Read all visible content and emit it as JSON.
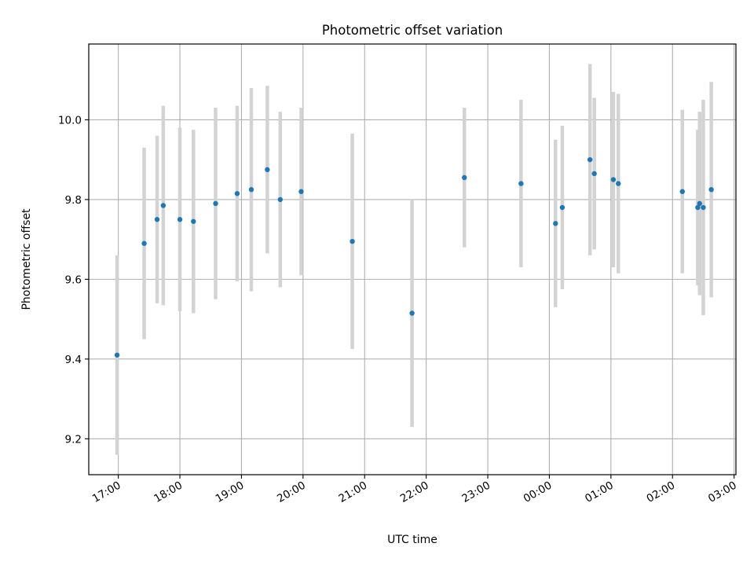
{
  "chart_data": {
    "type": "scatter",
    "title": "Photometric offset variation",
    "xlabel": "UTC time",
    "ylabel": "Photometric offset",
    "x_unit": "hours after 17:00 UTC",
    "xlim": [
      -0.48,
      10.03
    ],
    "ylim": [
      9.11,
      10.19
    ],
    "x_ticks": [
      0,
      1,
      2,
      3,
      4,
      5,
      6,
      7,
      8,
      9,
      10
    ],
    "x_tick_labels": [
      "17:00",
      "18:00",
      "19:00",
      "20:00",
      "21:00",
      "22:00",
      "23:00",
      "00:00",
      "01:00",
      "02:00",
      "03:00"
    ],
    "y_ticks": [
      9.2,
      9.4,
      9.6,
      9.8,
      10.0
    ],
    "y_tick_labels": [
      "9.2",
      "9.4",
      "9.6",
      "9.8",
      "10.0"
    ],
    "grid": true,
    "colors": {
      "points": "#1f77b4",
      "errorbars": "#d3d3d3",
      "grid": "#b0b0b0"
    },
    "points": [
      {
        "x": -0.02,
        "y": 9.41,
        "err": 0.25
      },
      {
        "x": 0.42,
        "y": 9.69,
        "err": 0.24
      },
      {
        "x": 0.63,
        "y": 9.75,
        "err": 0.21
      },
      {
        "x": 0.73,
        "y": 9.785,
        "err": 0.25
      },
      {
        "x": 1.0,
        "y": 9.75,
        "err": 0.23
      },
      {
        "x": 1.22,
        "y": 9.745,
        "err": 0.23
      },
      {
        "x": 1.58,
        "y": 9.79,
        "err": 0.24
      },
      {
        "x": 1.93,
        "y": 9.815,
        "err": 0.22
      },
      {
        "x": 2.16,
        "y": 9.825,
        "err": 0.255
      },
      {
        "x": 2.42,
        "y": 9.875,
        "err": 0.21
      },
      {
        "x": 2.63,
        "y": 9.8,
        "err": 0.22
      },
      {
        "x": 2.97,
        "y": 9.82,
        "err": 0.21
      },
      {
        "x": 3.8,
        "y": 9.695,
        "err": 0.27
      },
      {
        "x": 4.77,
        "y": 9.515,
        "err": 0.285
      },
      {
        "x": 5.62,
        "y": 9.855,
        "err": 0.175
      },
      {
        "x": 6.54,
        "y": 9.84,
        "err": 0.21
      },
      {
        "x": 7.1,
        "y": 9.74,
        "err": 0.21
      },
      {
        "x": 7.21,
        "y": 9.78,
        "err": 0.205
      },
      {
        "x": 7.66,
        "y": 9.9,
        "err": 0.24
      },
      {
        "x": 7.73,
        "y": 9.865,
        "err": 0.19
      },
      {
        "x": 8.04,
        "y": 9.85,
        "err": 0.22
      },
      {
        "x": 8.12,
        "y": 9.84,
        "err": 0.225
      },
      {
        "x": 9.16,
        "y": 9.82,
        "err": 0.205
      },
      {
        "x": 9.41,
        "y": 9.78,
        "err": 0.195
      },
      {
        "x": 9.44,
        "y": 9.79,
        "err": 0.23
      },
      {
        "x": 9.5,
        "y": 9.78,
        "err": 0.27
      },
      {
        "x": 9.63,
        "y": 9.825,
        "err": 0.27
      }
    ]
  }
}
